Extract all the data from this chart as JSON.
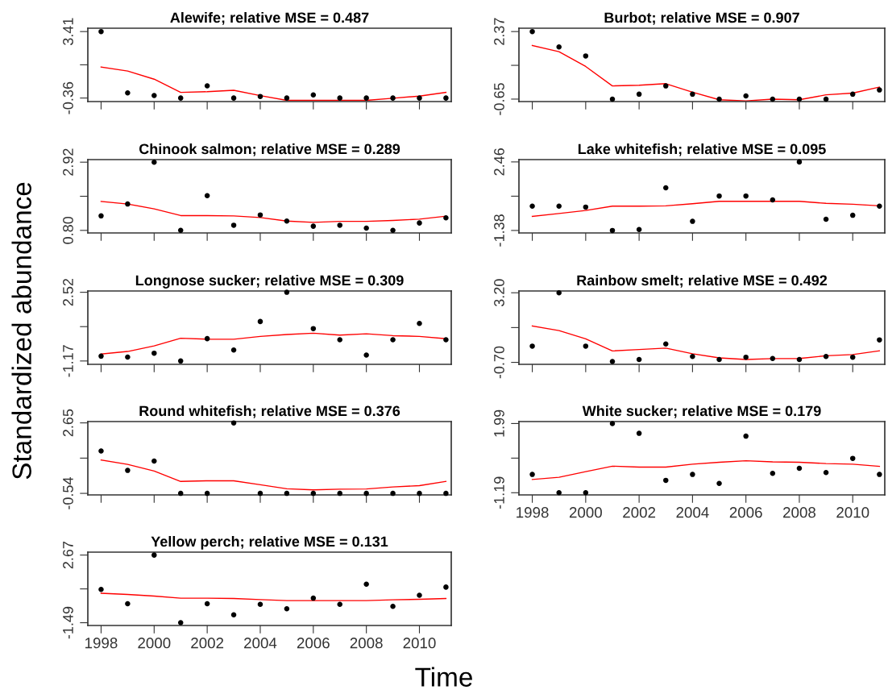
{
  "chart_data": [
    {
      "type": "scatter",
      "title": "Alewife; relative MSE = 0.487",
      "xlabel": "Time",
      "ylabel": "Standardized abundance",
      "x": [
        1998,
        1999,
        2000,
        2001,
        2002,
        2003,
        2004,
        2005,
        2006,
        2007,
        2008,
        2009,
        2010,
        2011
      ],
      "xlim": [
        1997.5,
        2011.2
      ],
      "xticks": [
        1998,
        2000,
        2002,
        2004,
        2006,
        2008,
        2010
      ],
      "ylim": [
        -0.56,
        3.6
      ],
      "yticks": [
        {
          "value": -0.36,
          "label": "-0.36"
        },
        {
          "value": 1.525,
          "label": null
        },
        {
          "value": 3.41,
          "label": "3.41"
        }
      ],
      "tick_labels": "y",
      "grid": false,
      "series": [
        {
          "marker": "circle",
          "color": "#000000",
          "values": [
            3.41,
            -0.07,
            -0.22,
            -0.36,
            0.33,
            -0.36,
            -0.27,
            -0.36,
            -0.18,
            -0.36,
            -0.36,
            -0.36,
            -0.36,
            -0.36
          ]
        },
        {
          "type": "line",
          "color": "#ff0000",
          "values": [
            1.4,
            1.17,
            0.71,
            -0.04,
            0.0,
            0.08,
            -0.22,
            -0.49,
            -0.49,
            -0.49,
            -0.49,
            -0.37,
            -0.25,
            -0.04
          ]
        }
      ]
    },
    {
      "type": "scatter",
      "title": "Burbot; relative MSE = 0.907",
      "x": [
        1998,
        1999,
        2000,
        2001,
        2002,
        2003,
        2004,
        2005,
        2006,
        2007,
        2008,
        2009,
        2010,
        2011
      ],
      "xlim": [
        1997.5,
        2011.2
      ],
      "xticks": [
        1998,
        2000,
        2002,
        2004,
        2006,
        2008,
        2010
      ],
      "ylim": [
        -0.76,
        2.52
      ],
      "yticks": [
        {
          "value": -0.65,
          "label": "-0.65"
        },
        {
          "value": 0.86,
          "label": null
        },
        {
          "value": 2.37,
          "label": "2.37"
        }
      ],
      "tick_labels": "y",
      "grid": false,
      "series": [
        {
          "marker": "circle",
          "color": "#000000",
          "values": [
            2.37,
            1.68,
            1.28,
            -0.65,
            -0.43,
            -0.06,
            -0.43,
            -0.65,
            -0.51,
            -0.65,
            -0.65,
            -0.65,
            -0.43,
            -0.24
          ]
        },
        {
          "type": "line",
          "color": "#ff0000",
          "values": [
            1.75,
            1.47,
            0.81,
            -0.06,
            -0.03,
            0.04,
            -0.34,
            -0.68,
            -0.73,
            -0.65,
            -0.68,
            -0.46,
            -0.38,
            -0.11
          ]
        }
      ]
    },
    {
      "type": "scatter",
      "title": "Chinook salmon; relative MSE = 0.289",
      "x": [
        1998,
        1999,
        2000,
        2001,
        2002,
        2003,
        2004,
        2005,
        2006,
        2007,
        2008,
        2009,
        2010,
        2011
      ],
      "xlim": [
        1997.5,
        2011.2
      ],
      "xticks": [
        1998,
        2000,
        2002,
        2004,
        2006,
        2008,
        2010
      ],
      "ylim": [
        0.72,
        3.0
      ],
      "yticks": [
        {
          "value": 0.8,
          "label": "0.80"
        },
        {
          "value": 1.86,
          "label": null
        },
        {
          "value": 2.92,
          "label": "2.92"
        }
      ],
      "tick_labels": "y",
      "grid": false,
      "series": [
        {
          "marker": "circle",
          "color": "#000000",
          "values": [
            1.25,
            1.62,
            2.92,
            0.8,
            1.88,
            0.96,
            1.28,
            1.09,
            0.93,
            0.96,
            0.87,
            0.8,
            1.03,
            1.19
          ]
        },
        {
          "type": "line",
          "color": "#ff0000",
          "values": [
            1.7,
            1.62,
            1.47,
            1.26,
            1.26,
            1.25,
            1.2,
            1.09,
            1.05,
            1.08,
            1.08,
            1.11,
            1.15,
            1.24
          ]
        }
      ]
    },
    {
      "type": "scatter",
      "title": "Lake whitefish; relative MSE = 0.095",
      "x": [
        1998,
        1999,
        2000,
        2001,
        2002,
        2003,
        2004,
        2005,
        2006,
        2007,
        2008,
        2009,
        2010,
        2011
      ],
      "xlim": [
        1997.5,
        2011.2
      ],
      "xticks": [
        1998,
        2000,
        2002,
        2004,
        2006,
        2008,
        2010
      ],
      "ylim": [
        -1.52,
        2.59
      ],
      "yticks": [
        {
          "value": -1.38,
          "label": "-1.38"
        },
        {
          "value": 0.54,
          "label": null
        },
        {
          "value": 2.46,
          "label": "2.46"
        }
      ],
      "tick_labels": "y",
      "grid": false,
      "series": [
        {
          "marker": "circle",
          "color": "#000000",
          "values": [
            -0.02,
            -0.02,
            -0.07,
            -1.38,
            -1.33,
            1.01,
            -0.87,
            0.55,
            0.55,
            0.33,
            2.46,
            -0.75,
            -0.53,
            -0.02
          ]
        },
        {
          "type": "line",
          "color": "#ff0000",
          "values": [
            -0.59,
            -0.43,
            -0.26,
            -0.02,
            -0.02,
            0.0,
            0.12,
            0.25,
            0.25,
            0.25,
            0.25,
            0.14,
            0.09,
            0.0
          ]
        }
      ]
    },
    {
      "type": "scatter",
      "title": "Longnose sucker; relative MSE = 0.309",
      "x": [
        1998,
        1999,
        2000,
        2001,
        2002,
        2003,
        2004,
        2005,
        2006,
        2007,
        2008,
        2009,
        2010,
        2011
      ],
      "xlim": [
        1997.5,
        2011.2
      ],
      "xticks": [
        1998,
        2000,
        2002,
        2004,
        2006,
        2008,
        2010
      ],
      "ylim": [
        -1.35,
        2.59
      ],
      "yticks": [
        {
          "value": -1.17,
          "label": "-1.17"
        },
        {
          "value": 0.675,
          "label": null
        },
        {
          "value": 2.52,
          "label": "2.52"
        }
      ],
      "tick_labels": "y",
      "grid": false,
      "series": [
        {
          "marker": "circle",
          "color": "#000000",
          "values": [
            -0.91,
            -0.96,
            -0.75,
            -1.17,
            0.03,
            -0.58,
            0.95,
            2.52,
            0.57,
            -0.03,
            -0.85,
            -0.03,
            0.85,
            -0.03
          ]
        },
        {
          "type": "line",
          "color": "#ff0000",
          "values": [
            -0.8,
            -0.66,
            -0.36,
            0.05,
            0.0,
            0.0,
            0.15,
            0.25,
            0.32,
            0.22,
            0.29,
            0.19,
            0.15,
            0.03
          ]
        }
      ]
    },
    {
      "type": "scatter",
      "title": "Rainbow smelt; relative MSE = 0.492",
      "x": [
        1998,
        1999,
        2000,
        2001,
        2002,
        2003,
        2004,
        2005,
        2006,
        2007,
        2008,
        2009,
        2010,
        2011
      ],
      "xlim": [
        1997.5,
        2011.2
      ],
      "xticks": [
        1998,
        2000,
        2002,
        2004,
        2006,
        2008,
        2010
      ],
      "ylim": [
        -0.81,
        3.3
      ],
      "yticks": [
        {
          "value": -0.7,
          "label": "-0.70"
        },
        {
          "value": 1.25,
          "label": null
        },
        {
          "value": 3.2,
          "label": "3.20"
        }
      ],
      "tick_labels": "y",
      "grid": false,
      "series": [
        {
          "marker": "circle",
          "color": "#000000",
          "values": [
            0.21,
            3.2,
            0.21,
            -0.65,
            -0.54,
            0.33,
            -0.37,
            -0.54,
            -0.41,
            -0.48,
            -0.54,
            -0.37,
            -0.41,
            0.56
          ]
        },
        {
          "type": "line",
          "color": "#ff0000",
          "values": [
            1.34,
            1.08,
            0.62,
            -0.06,
            0.02,
            0.1,
            -0.22,
            -0.45,
            -0.54,
            -0.49,
            -0.48,
            -0.33,
            -0.26,
            -0.05
          ]
        }
      ]
    },
    {
      "type": "scatter",
      "title": "Round whitefish; relative MSE = 0.376",
      "x": [
        1998,
        1999,
        2000,
        2001,
        2002,
        2003,
        2004,
        2005,
        2006,
        2007,
        2008,
        2009,
        2010,
        2011
      ],
      "xlim": [
        1997.5,
        2011.2
      ],
      "xticks": [
        1998,
        2000,
        2002,
        2004,
        2006,
        2008,
        2010
      ],
      "ylim": [
        -0.61,
        2.71
      ],
      "yticks": [
        {
          "value": -0.54,
          "label": "-0.54"
        },
        {
          "value": 1.055,
          "label": null
        },
        {
          "value": 2.65,
          "label": "2.65"
        }
      ],
      "tick_labels": "y",
      "grid": false,
      "series": [
        {
          "marker": "circle",
          "color": "#000000",
          "values": [
            1.38,
            0.5,
            0.92,
            -0.54,
            -0.54,
            2.65,
            -0.54,
            -0.54,
            -0.54,
            -0.54,
            -0.54,
            -0.54,
            -0.54,
            -0.54
          ]
        },
        {
          "type": "line",
          "color": "#ff0000",
          "values": [
            0.97,
            0.77,
            0.47,
            0.0,
            0.03,
            0.03,
            -0.15,
            -0.33,
            -0.38,
            -0.35,
            -0.34,
            -0.25,
            -0.19,
            0.0
          ]
        }
      ]
    },
    {
      "type": "scatter",
      "title": "White sucker; relative MSE = 0.179",
      "x": [
        1998,
        1999,
        2000,
        2001,
        2002,
        2003,
        2004,
        2005,
        2006,
        2007,
        2008,
        2009,
        2010,
        2011
      ],
      "xlim": [
        1997.5,
        2011.2
      ],
      "xticks": [
        1998,
        2000,
        2002,
        2004,
        2006,
        2008,
        2010
      ],
      "ylim": [
        -1.29,
        2.08
      ],
      "yticks": [
        {
          "value": -1.19,
          "label": "-1.19"
        },
        {
          "value": 0.4,
          "label": null
        },
        {
          "value": 1.99,
          "label": "1.99"
        }
      ],
      "grid": false,
      "series": [
        {
          "marker": "circle",
          "color": "#000000",
          "values": [
            -0.35,
            -1.19,
            -1.19,
            1.99,
            1.54,
            -0.62,
            -0.35,
            -0.76,
            1.41,
            -0.3,
            -0.07,
            -0.26,
            0.39,
            -0.35
          ]
        },
        {
          "type": "line",
          "color": "#ff0000",
          "values": [
            -0.58,
            -0.48,
            -0.22,
            0.03,
            -0.01,
            -0.01,
            0.12,
            0.21,
            0.28,
            0.23,
            0.21,
            0.15,
            0.12,
            0.02
          ]
        }
      ]
    },
    {
      "type": "scatter",
      "title": "Yellow perch; relative MSE = 0.131",
      "x": [
        1998,
        1999,
        2000,
        2001,
        2002,
        2003,
        2004,
        2005,
        2006,
        2007,
        2008,
        2009,
        2010,
        2011
      ],
      "xlim": [
        1997.5,
        2011.2
      ],
      "xticks": [
        1998,
        2000,
        2002,
        2004,
        2006,
        2008,
        2010
      ],
      "ylim": [
        -1.66,
        2.85
      ],
      "yticks": [
        {
          "value": -1.49,
          "label": "-1.49"
        },
        {
          "value": 0.59,
          "label": null
        },
        {
          "value": 2.67,
          "label": "2.67"
        }
      ],
      "grid": false,
      "series": [
        {
          "marker": "circle",
          "color": "#000000",
          "values": [
            0.56,
            -0.32,
            2.67,
            -1.49,
            -0.32,
            -1.0,
            -0.36,
            -0.63,
            0.02,
            -0.36,
            0.88,
            -0.48,
            0.2,
            0.7
          ]
        },
        {
          "type": "line",
          "color": "#ff0000",
          "values": [
            0.32,
            0.25,
            0.15,
            0.02,
            0.02,
            0.0,
            -0.07,
            -0.13,
            -0.13,
            -0.13,
            -0.13,
            -0.08,
            -0.05,
            0.0
          ]
        }
      ]
    }
  ]
}
